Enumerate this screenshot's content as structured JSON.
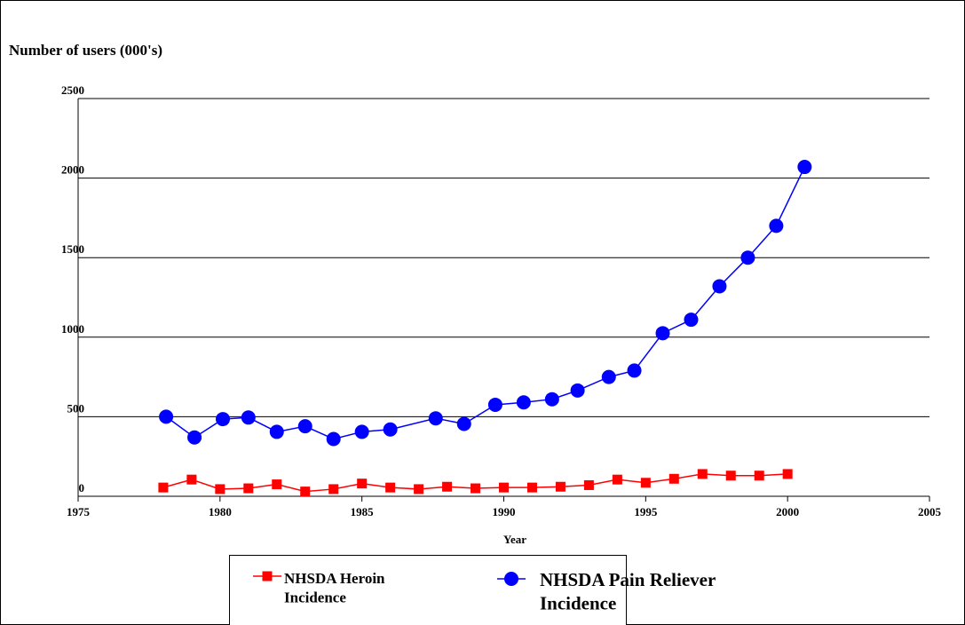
{
  "chart_data": {
    "type": "line",
    "y_axis_label": "Number of users (000's)",
    "x_axis_label": "Year",
    "xlim": [
      1975,
      2005
    ],
    "xticks": [
      1975,
      1980,
      1985,
      1990,
      1995,
      2000,
      2005
    ],
    "ylim": [
      0,
      2500
    ],
    "yticks": [
      0,
      500,
      1000,
      1500,
      2000,
      2500
    ],
    "grid": true,
    "legend": "bottom",
    "series": [
      {
        "name": "NHSDA Heroin Incidence",
        "color": "#ff0000",
        "marker": "square",
        "x": [
          1978,
          1979,
          1980,
          1981,
          1982,
          1983,
          1984,
          1985,
          1986,
          1987,
          1988,
          1989,
          1990,
          1991,
          1992,
          1993,
          1994,
          1995,
          1996,
          1997,
          1998,
          1999,
          2000
        ],
        "values": [
          55,
          105,
          45,
          50,
          75,
          30,
          45,
          80,
          55,
          45,
          60,
          50,
          55,
          55,
          60,
          70,
          105,
          85,
          110,
          140,
          130,
          130,
          140
        ]
      },
      {
        "name": "NHSDA Pain Reliever Incidence",
        "color": "#0000ff",
        "marker": "circle",
        "x": [
          1978.1,
          1979.1,
          1980.1,
          1981.0,
          1982.0,
          1983.0,
          1984.0,
          1985.0,
          1986.0,
          1987.6,
          1988.6,
          1989.7,
          1990.7,
          1991.7,
          1992.6,
          1993.7,
          1994.6,
          1995.6,
          1996.6,
          1997.6,
          1998.6,
          1999.6,
          2000.6
        ],
        "values": [
          500,
          370,
          485,
          495,
          405,
          440,
          360,
          405,
          420,
          490,
          455,
          575,
          590,
          610,
          665,
          750,
          790,
          1025,
          1110,
          1320,
          1500,
          1700,
          2070
        ]
      }
    ]
  }
}
